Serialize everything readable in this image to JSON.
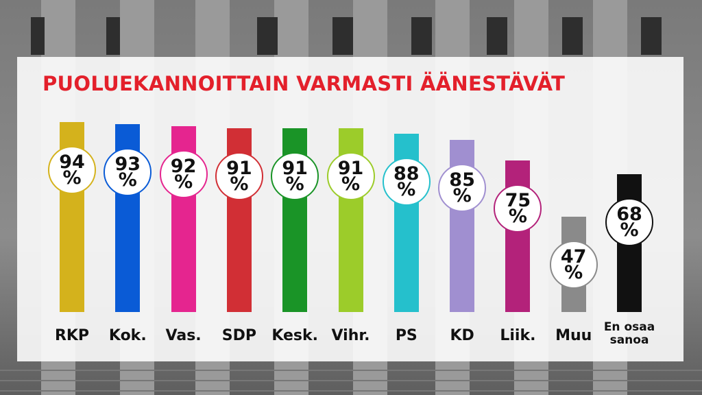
{
  "chart_data": {
    "type": "bar",
    "title": "PUOLUEKANNOITTAIN VARMASTI ÄÄNESTÄVÄT",
    "categories": [
      "RKP",
      "Kok.",
      "Vas.",
      "SDP",
      "Kesk.",
      "Vihr.",
      "PS",
      "KD",
      "Liik.",
      "Muu",
      "En osaa sanoa"
    ],
    "values": [
      94,
      93,
      92,
      91,
      91,
      91,
      88,
      85,
      75,
      47,
      68
    ],
    "value_labels": [
      "94 %",
      "93 %",
      "92 %",
      "91 %",
      "91 %",
      "91 %",
      "88 %",
      "85 %",
      "75 %",
      "47 %",
      "68 %"
    ],
    "colors": [
      "#d4b21c",
      "#0a5bd6",
      "#e5258f",
      "#d12f35",
      "#1a9427",
      "#9ccc2a",
      "#25c0cc",
      "#a08fd0",
      "#b3227a",
      "#8a8a8a",
      "#111111"
    ]
  }
}
